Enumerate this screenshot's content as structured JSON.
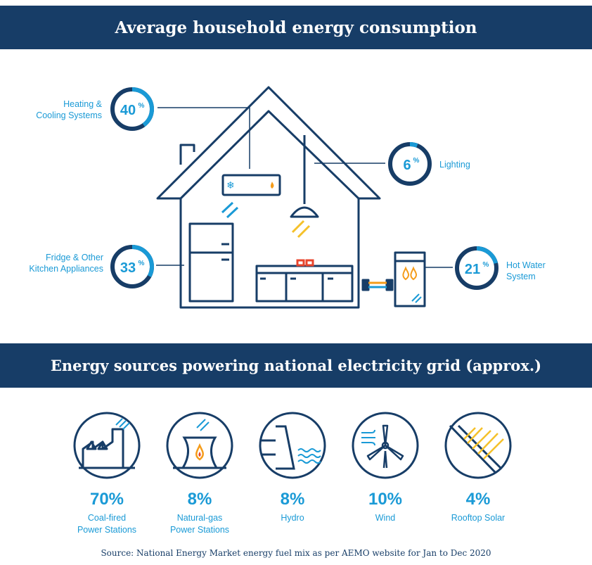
{
  "header": {
    "title": "Average household energy consumption"
  },
  "consumption": {
    "heating": {
      "percent": 40,
      "label_line1": "Heating &",
      "label_line2": "Cooling Systems"
    },
    "lighting": {
      "percent": 6,
      "label": "Lighting"
    },
    "kitchen": {
      "percent": 33,
      "label_line1": "Fridge & Other",
      "label_line2": "Kitchen Appliances"
    },
    "hot_water": {
      "percent": 21,
      "label_line1": "Hot Water",
      "label_line2": "System"
    },
    "percent_symbol": "%"
  },
  "grid_section": {
    "title": "Energy sources powering national electricity grid (approx.)"
  },
  "sources": [
    {
      "value": "70%",
      "line1": "Coal-fired",
      "line2": "Power Stations"
    },
    {
      "value": "8%",
      "line1": "Natural-gas",
      "line2": "Power Stations"
    },
    {
      "value": "8%",
      "line1": "Hydro",
      "line2": ""
    },
    {
      "value": "10%",
      "line1": "Wind",
      "line2": ""
    },
    {
      "value": "4%",
      "line1": "Rooftop Solar",
      "line2": ""
    }
  ],
  "footer": {
    "source": "Source: National Energy Market energy fuel mix as per AEMO website for Jan to Dec 2020"
  },
  "colors": {
    "navy": "#173d67",
    "blue": "#1a9ad6",
    "orange": "#f59c1a",
    "red": "#e8452c",
    "yellow": "#f5c12a"
  },
  "icons": [
    "snowflake-icon",
    "flame-icon",
    "factory-icon",
    "power-plant-icon",
    "dam-icon",
    "wind-turbine-icon",
    "solar-panel-icon"
  ]
}
